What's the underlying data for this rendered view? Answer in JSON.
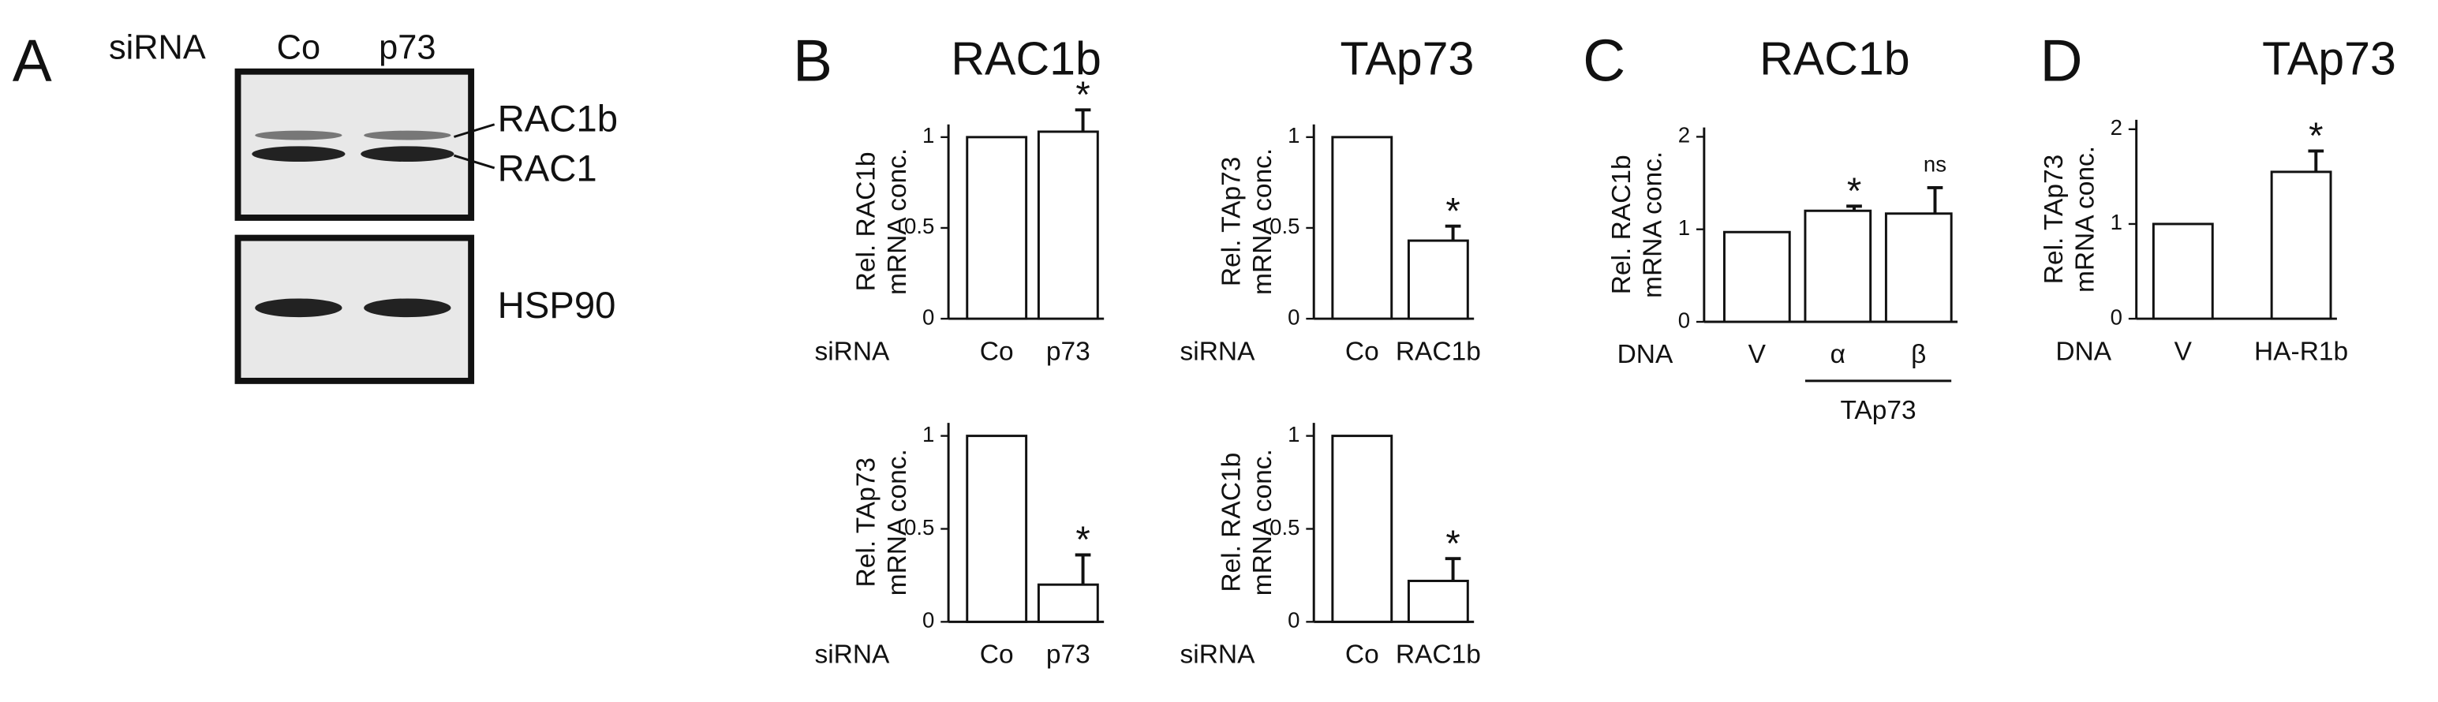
{
  "panels": [
    "A",
    "B",
    "C",
    "D"
  ],
  "blot": {
    "label": "siRNA",
    "lanes": [
      "Co",
      "p73"
    ],
    "bands": [
      "RAC1b",
      "RAC1",
      "HSP90"
    ]
  },
  "chart_data": [
    {
      "type": "bar",
      "title": "RAC1b",
      "ylabel": [
        "Rel. RAC1b",
        "mRNA conc."
      ],
      "xlabel": "siRNA",
      "categories": [
        "Co",
        "p73"
      ],
      "values": [
        1,
        1.03
      ],
      "errors": [
        null,
        0.12
      ],
      "annotations": [
        null,
        "*"
      ],
      "ylim": [
        0,
        1.07
      ],
      "yticks": [
        0,
        0.5,
        1
      ],
      "color": "#ffffff"
    },
    {
      "type": "bar",
      "title": "TAp73",
      "ylabel": [
        "Rel. TAp73",
        "mRNA conc."
      ],
      "xlabel": "siRNA",
      "categories": [
        "Co",
        "RAC1b"
      ],
      "values": [
        1,
        0.43
      ],
      "errors": [
        null,
        0.08
      ],
      "annotations": [
        null,
        "*"
      ],
      "ylim": [
        0,
        1.07
      ],
      "yticks": [
        0,
        0.5,
        1
      ],
      "color": "#ffffff"
    },
    {
      "type": "bar",
      "ylabel": [
        "Rel. TAp73",
        "mRNA conc."
      ],
      "xlabel": "siRNA",
      "categories": [
        "Co",
        "p73"
      ],
      "values": [
        1,
        0.2
      ],
      "errors": [
        null,
        0.16
      ],
      "annotations": [
        null,
        "*"
      ],
      "ylim": [
        0,
        1.07
      ],
      "yticks": [
        0,
        0.5,
        1
      ],
      "color": "#ffffff"
    },
    {
      "type": "bar",
      "ylabel": [
        "Rel. RAC1b",
        "mRNA conc."
      ],
      "xlabel": "siRNA",
      "categories": [
        "Co",
        "RAC1b"
      ],
      "values": [
        1,
        0.22
      ],
      "errors": [
        null,
        0.12
      ],
      "annotations": [
        null,
        "*"
      ],
      "ylim": [
        0,
        1.07
      ],
      "yticks": [
        0,
        0.5,
        1
      ],
      "color": "#ffffff"
    },
    {
      "type": "bar",
      "title": "RAC1b",
      "ylabel": [
        "Rel. RAC1b",
        "mRNA conc."
      ],
      "xlabel": "DNA",
      "categories": [
        "V",
        "α",
        "β"
      ],
      "values": [
        0.97,
        1.2,
        1.17
      ],
      "errors": [
        null,
        0.05,
        0.28
      ],
      "annotations": [
        null,
        "*",
        "ns"
      ],
      "group_label": "TAp73",
      "ylim": [
        0,
        2.1
      ],
      "yticks": [
        0,
        1,
        2
      ],
      "color": "#ffffff"
    },
    {
      "type": "bar",
      "title": "TAp73",
      "ylabel": [
        "Rel. TAp73",
        "mRNA conc."
      ],
      "xlabel": "DNA",
      "categories": [
        "V",
        "HA-R1b"
      ],
      "values": [
        1,
        1.55
      ],
      "errors": [
        null,
        0.22
      ],
      "annotations": [
        null,
        "*"
      ],
      "ylim": [
        0,
        2.1
      ],
      "yticks": [
        0,
        1,
        2
      ],
      "color": "#ffffff"
    }
  ]
}
